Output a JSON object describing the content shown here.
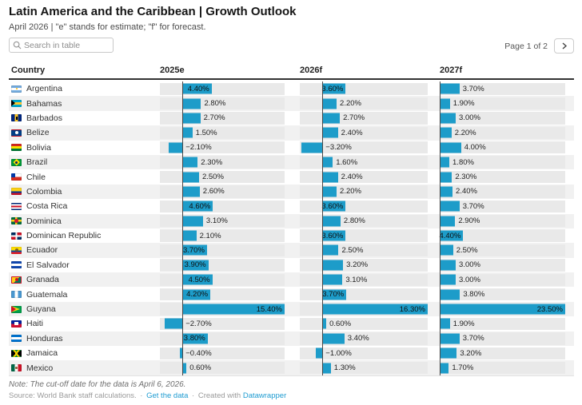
{
  "header": {
    "title": "Latin America and the Caribbean | Growth Outlook",
    "subtitle": "April 2026 | \"e\" stands for estimate; \"f\" for forecast.",
    "search_placeholder": "Search in table",
    "pagination_label": "Page 1 of 2"
  },
  "table": {
    "columns": [
      "Country",
      "2025e",
      "2026f",
      "2027f"
    ],
    "bar_color": "#1d9cc9",
    "axes": [
      {
        "column": "2025e",
        "min": -3.4,
        "max": 15.4
      },
      {
        "column": "2026f",
        "min": -3.5,
        "max": 16.3
      },
      {
        "column": "2027f",
        "min": 0,
        "max": 23.5
      }
    ],
    "rows": [
      {
        "country": "Argentina",
        "flag": "ar",
        "values": [
          4.4,
          3.6,
          3.7
        ],
        "labels": [
          "4.40%",
          "3.60%",
          "3.70%"
        ]
      },
      {
        "country": "Bahamas",
        "flag": "bs",
        "values": [
          2.8,
          2.2,
          1.9
        ],
        "labels": [
          "2.80%",
          "2.20%",
          "1.90%"
        ]
      },
      {
        "country": "Barbados",
        "flag": "bb",
        "values": [
          2.7,
          2.7,
          3.0
        ],
        "labels": [
          "2.70%",
          "2.70%",
          "3.00%"
        ]
      },
      {
        "country": "Belize",
        "flag": "bz",
        "values": [
          1.5,
          2.4,
          2.2
        ],
        "labels": [
          "1.50%",
          "2.40%",
          "2.20%"
        ]
      },
      {
        "country": "Bolivia",
        "flag": "bo",
        "values": [
          -2.1,
          -3.2,
          4.0
        ],
        "labels": [
          "−2.10%",
          "−3.20%",
          "4.00%"
        ]
      },
      {
        "country": "Brazil",
        "flag": "br",
        "values": [
          2.3,
          1.6,
          1.8
        ],
        "labels": [
          "2.30%",
          "1.60%",
          "1.80%"
        ]
      },
      {
        "country": "Chile",
        "flag": "cl",
        "values": [
          2.5,
          2.4,
          2.3
        ],
        "labels": [
          "2.50%",
          "2.40%",
          "2.30%"
        ]
      },
      {
        "country": "Colombia",
        "flag": "co",
        "values": [
          2.6,
          2.2,
          2.4
        ],
        "labels": [
          "2.60%",
          "2.20%",
          "2.40%"
        ]
      },
      {
        "country": "Costa Rica",
        "flag": "cr",
        "values": [
          4.6,
          3.6,
          3.7
        ],
        "labels": [
          "4.60%",
          "3.60%",
          "3.70%"
        ]
      },
      {
        "country": "Dominica",
        "flag": "dm",
        "values": [
          3.1,
          2.8,
          2.9
        ],
        "labels": [
          "3.10%",
          "2.80%",
          "2.90%"
        ]
      },
      {
        "country": "Dominican Republic",
        "flag": "do",
        "values": [
          2.1,
          3.6,
          4.4
        ],
        "labels": [
          "2.10%",
          "3.60%",
          "4.40%"
        ]
      },
      {
        "country": "Ecuador",
        "flag": "ec",
        "values": [
          3.7,
          2.5,
          2.5
        ],
        "labels": [
          "3.70%",
          "2.50%",
          "2.50%"
        ]
      },
      {
        "country": "El Salvador",
        "flag": "sv",
        "values": [
          3.9,
          3.2,
          3.0
        ],
        "labels": [
          "3.90%",
          "3.20%",
          "3.00%"
        ]
      },
      {
        "country": "Granada",
        "flag": "gd",
        "values": [
          4.5,
          3.1,
          3.0
        ],
        "labels": [
          "4.50%",
          "3.10%",
          "3.00%"
        ]
      },
      {
        "country": "Guatemala",
        "flag": "gt",
        "values": [
          4.2,
          3.7,
          3.8
        ],
        "labels": [
          "4.20%",
          "3.70%",
          "3.80%"
        ]
      },
      {
        "country": "Guyana",
        "flag": "gy",
        "values": [
          15.4,
          16.3,
          23.5
        ],
        "labels": [
          "15.40%",
          "16.30%",
          "23.50%"
        ]
      },
      {
        "country": "Haiti",
        "flag": "ht",
        "values": [
          -2.7,
          0.6,
          1.9
        ],
        "labels": [
          "−2.70%",
          "0.60%",
          "1.90%"
        ]
      },
      {
        "country": "Honduras",
        "flag": "hn",
        "values": [
          3.8,
          3.4,
          3.7
        ],
        "labels": [
          "3.80%",
          "3.40%",
          "3.70%"
        ]
      },
      {
        "country": "Jamaica",
        "flag": "jm",
        "values": [
          -0.4,
          -1.0,
          3.2
        ],
        "labels": [
          "−0.40%",
          "−1.00%",
          "3.20%"
        ]
      },
      {
        "country": "Mexico",
        "flag": "mx",
        "values": [
          0.6,
          1.3,
          1.7
        ],
        "labels": [
          "0.60%",
          "1.30%",
          "1.70%"
        ]
      }
    ]
  },
  "footer": {
    "note": "Note: The cut-off date for the data is April 6, 2026.",
    "source_label": "Source: World Bank staff calculations.",
    "separator": "·",
    "get_data_link": "Get the data",
    "created_with": "Created with",
    "datawrapper_link": "Datawrapper"
  },
  "chart_data": {
    "type": "bar",
    "title": "Latin America and the Caribbean | Growth Outlook",
    "subtitle": "April 2026 | \"e\" stands for estimate; \"f\" for forecast.",
    "unit": "%",
    "categories": [
      "Argentina",
      "Bahamas",
      "Barbados",
      "Belize",
      "Bolivia",
      "Brazil",
      "Chile",
      "Colombia",
      "Costa Rica",
      "Dominica",
      "Dominican Republic",
      "Ecuador",
      "El Salvador",
      "Granada",
      "Guatemala",
      "Guyana",
      "Haiti",
      "Honduras",
      "Jamaica",
      "Mexico"
    ],
    "series": [
      {
        "name": "2025e",
        "values": [
          4.4,
          2.8,
          2.7,
          1.5,
          -2.1,
          2.3,
          2.5,
          2.6,
          4.6,
          3.1,
          2.1,
          3.7,
          3.9,
          4.5,
          4.2,
          15.4,
          -2.7,
          3.8,
          -0.4,
          0.6
        ]
      },
      {
        "name": "2026f",
        "values": [
          3.6,
          2.2,
          2.7,
          2.4,
          -3.2,
          1.6,
          2.4,
          2.2,
          3.6,
          2.8,
          3.6,
          2.5,
          3.2,
          3.1,
          3.7,
          16.3,
          0.6,
          3.4,
          -1.0,
          1.3
        ]
      },
      {
        "name": "2027f",
        "values": [
          3.7,
          1.9,
          3.0,
          2.2,
          4.0,
          1.8,
          2.3,
          2.4,
          3.7,
          2.9,
          4.4,
          2.5,
          3.0,
          3.0,
          3.8,
          23.5,
          1.9,
          3.7,
          3.2,
          1.7
        ]
      }
    ],
    "axis_ranges": [
      [
        -3.4,
        15.4
      ],
      [
        -3.5,
        16.3
      ],
      [
        0,
        23.5
      ]
    ],
    "grid": false,
    "legend_position": "column-headers"
  }
}
